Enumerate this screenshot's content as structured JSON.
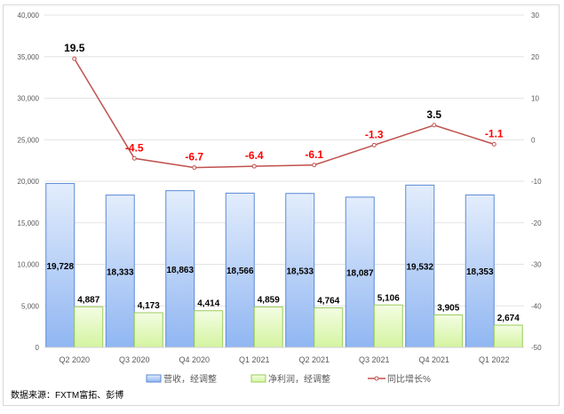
{
  "chart_data": {
    "type": "bar+line",
    "categories": [
      "Q2 2020",
      "Q3 2020",
      "Q4 2020",
      "Q1 2021",
      "Q2 2021",
      "Q3 2021",
      "Q4 2021",
      "Q1 2022"
    ],
    "series": [
      {
        "name": "营收，经调整",
        "type": "bar",
        "axis": "left",
        "values": [
          19728,
          18333,
          18863,
          18566,
          18533,
          18087,
          19532,
          18353
        ],
        "labels": [
          "19,728",
          "18,333",
          "18,863",
          "18,566",
          "18,533",
          "18,087",
          "19,532",
          "18,353"
        ],
        "color": "#8eb4f0"
      },
      {
        "name": "净利润，经调整",
        "type": "bar",
        "axis": "left",
        "values": [
          4887,
          4173,
          4414,
          4859,
          4764,
          5106,
          3905,
          2674
        ],
        "labels": [
          "4,887",
          "4,173",
          "4,414",
          "4,859",
          "4,764",
          "5,106",
          "3,905",
          "2,674"
        ],
        "color": "#d8f5a8"
      },
      {
        "name": "同比增长%",
        "type": "line",
        "axis": "right",
        "values": [
          19.5,
          -4.5,
          -6.7,
          -6.4,
          -6.1,
          -1.3,
          3.5,
          -1.1
        ],
        "labels": [
          "19.5",
          "-4.5",
          "-6.7",
          "-6.4",
          "-6.1",
          "-1.3",
          "3.5",
          "-1.1"
        ],
        "color": "#c0504d"
      }
    ],
    "y_left": {
      "lim": [
        0,
        40000
      ],
      "ticks": [
        "0",
        "5,000",
        "10,000",
        "15,000",
        "20,000",
        "25,000",
        "30,000",
        "35,000",
        "40,000"
      ]
    },
    "y_right": {
      "lim": [
        -50,
        30
      ],
      "ticks": [
        "-50",
        "-40",
        "-30",
        "-20",
        "-10",
        "0",
        "10",
        "20",
        "30"
      ]
    },
    "grid": true,
    "legend": "bottom"
  },
  "source": "数据来源：FXTM富拓、彭博"
}
